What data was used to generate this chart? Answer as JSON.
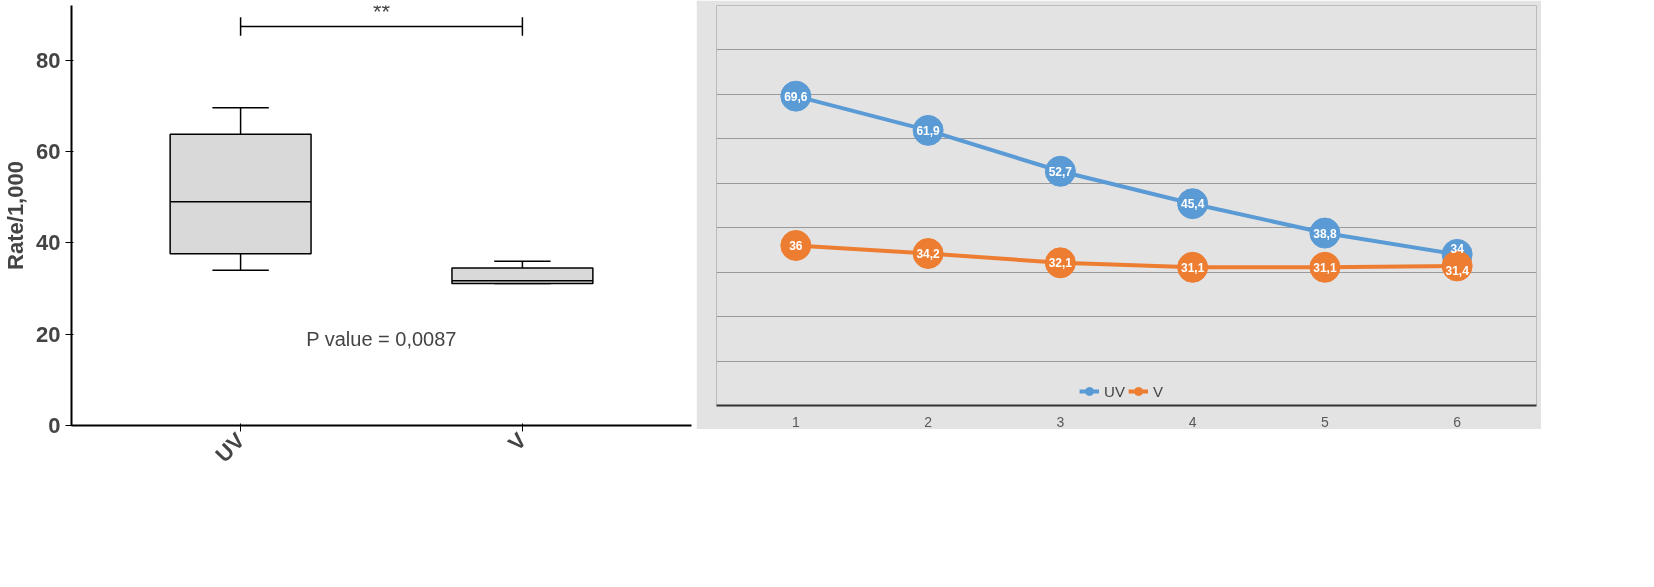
{
  "chart_data": [
    {
      "type": "box",
      "ylabel": "Rate/1,000",
      "categories": [
        "UV",
        "V"
      ],
      "color": "#d9d9d9",
      "ylim": [
        0,
        92
      ],
      "yticks": [
        0,
        20,
        40,
        60,
        80
      ],
      "grid": false,
      "boxes": [
        {
          "low": 34,
          "q1": 37.6,
          "median": 49,
          "q3": 63.8,
          "high": 69.6
        },
        {
          "low": 31.1,
          "q1": 31.1,
          "median": 31.7,
          "q3": 34.5,
          "high": 36
        }
      ],
      "annotations": [
        "**",
        "P value = 0,0087"
      ]
    },
    {
      "type": "line",
      "categories": [
        "1",
        "2",
        "3",
        "4",
        "5",
        "6"
      ],
      "ylim": [
        0,
        90
      ],
      "yticks": [
        {
          "value": 0,
          "label": null
        },
        {
          "value": 10,
          "label": null
        },
        {
          "value": 20,
          "label": null
        },
        {
          "value": 30,
          "label": null
        },
        {
          "value": 40,
          "label": null
        },
        {
          "value": 50,
          "label": null
        },
        {
          "value": 60,
          "label": null
        },
        {
          "value": 70,
          "label": null
        },
        {
          "value": 80,
          "label": null
        }
      ],
      "tick_labels": "x",
      "grid": "y",
      "legend": "bottom",
      "marker": "circle",
      "series": [
        {
          "name": "UV",
          "color": "#5b9bd5",
          "values": [
            69.6,
            61.9,
            52.7,
            45.4,
            38.8,
            34
          ],
          "value_labels": [
            "69,6",
            "61,9",
            "52,7",
            "45,4",
            "38,8",
            "34"
          ]
        },
        {
          "name": "V",
          "color": "#ed7d31",
          "values": [
            36,
            34.2,
            32.1,
            31.1,
            31.1,
            31.4
          ],
          "value_labels": [
            "36",
            "34,2",
            "32,1",
            "31,1",
            "31,1",
            "31,4"
          ]
        }
      ]
    }
  ]
}
